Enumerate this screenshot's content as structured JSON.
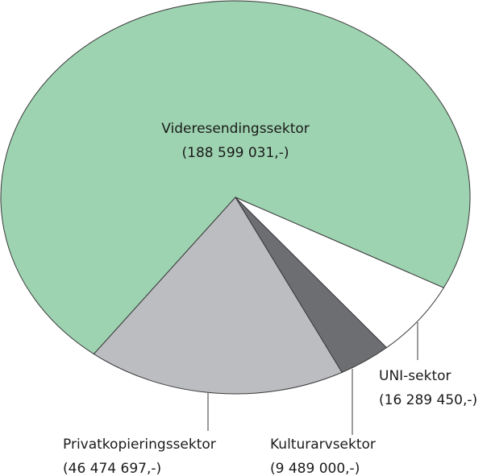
{
  "chart_data": {
    "type": "pie",
    "categories": [
      "Videresendingssektor",
      "Privatkopieringssektor",
      "Kulturarvsektor",
      "UNI-sektor"
    ],
    "values": [
      188599031,
      46474697,
      9489000,
      16289450
    ],
    "value_labels": [
      "(188 599 031,-)",
      "(46 474 697,-)",
      "(9 489 000,-)",
      "(16 289 450,-)"
    ],
    "colors": [
      "#9dd3b0",
      "#bcbdc1",
      "#6d6e72",
      "#ffffff"
    ]
  }
}
